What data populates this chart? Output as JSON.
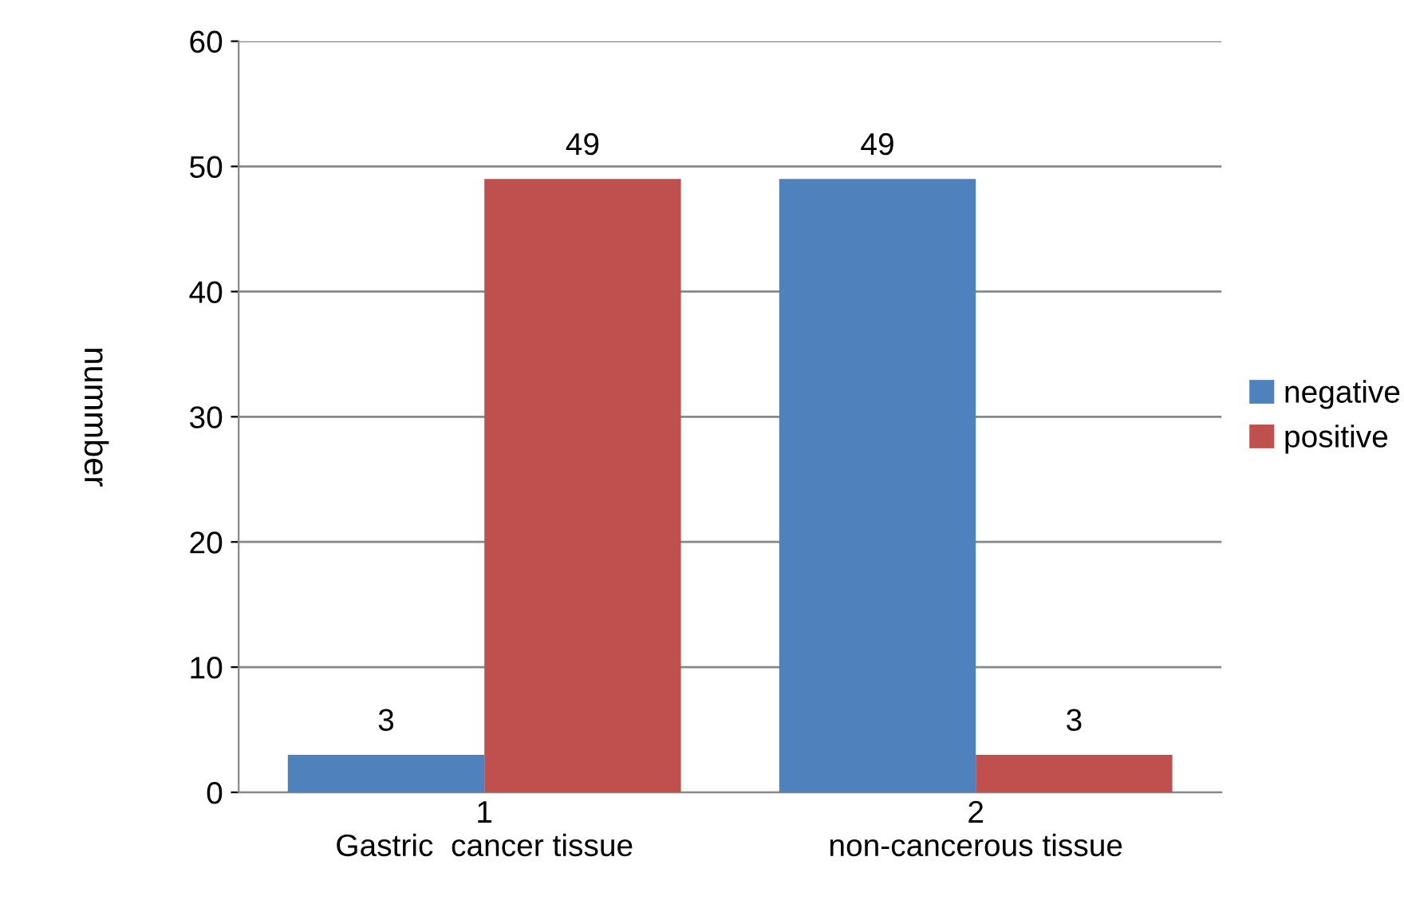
{
  "chart_data": {
    "type": "bar",
    "ylabel": "nummber",
    "categories": [
      "1\nGastric  cancer tissue",
      "2\nnon-cancerous tissue"
    ],
    "series": [
      {
        "name": "negative",
        "color": "#4f81bd",
        "values": [
          3,
          49
        ]
      },
      {
        "name": "positive",
        "color": "#c0504d",
        "values": [
          49,
          3
        ]
      }
    ],
    "ylim": [
      0,
      60
    ],
    "yticks": [
      0,
      10,
      20,
      30,
      40,
      50,
      60
    ],
    "grid": "y",
    "legend": "right",
    "data_labels": true
  }
}
